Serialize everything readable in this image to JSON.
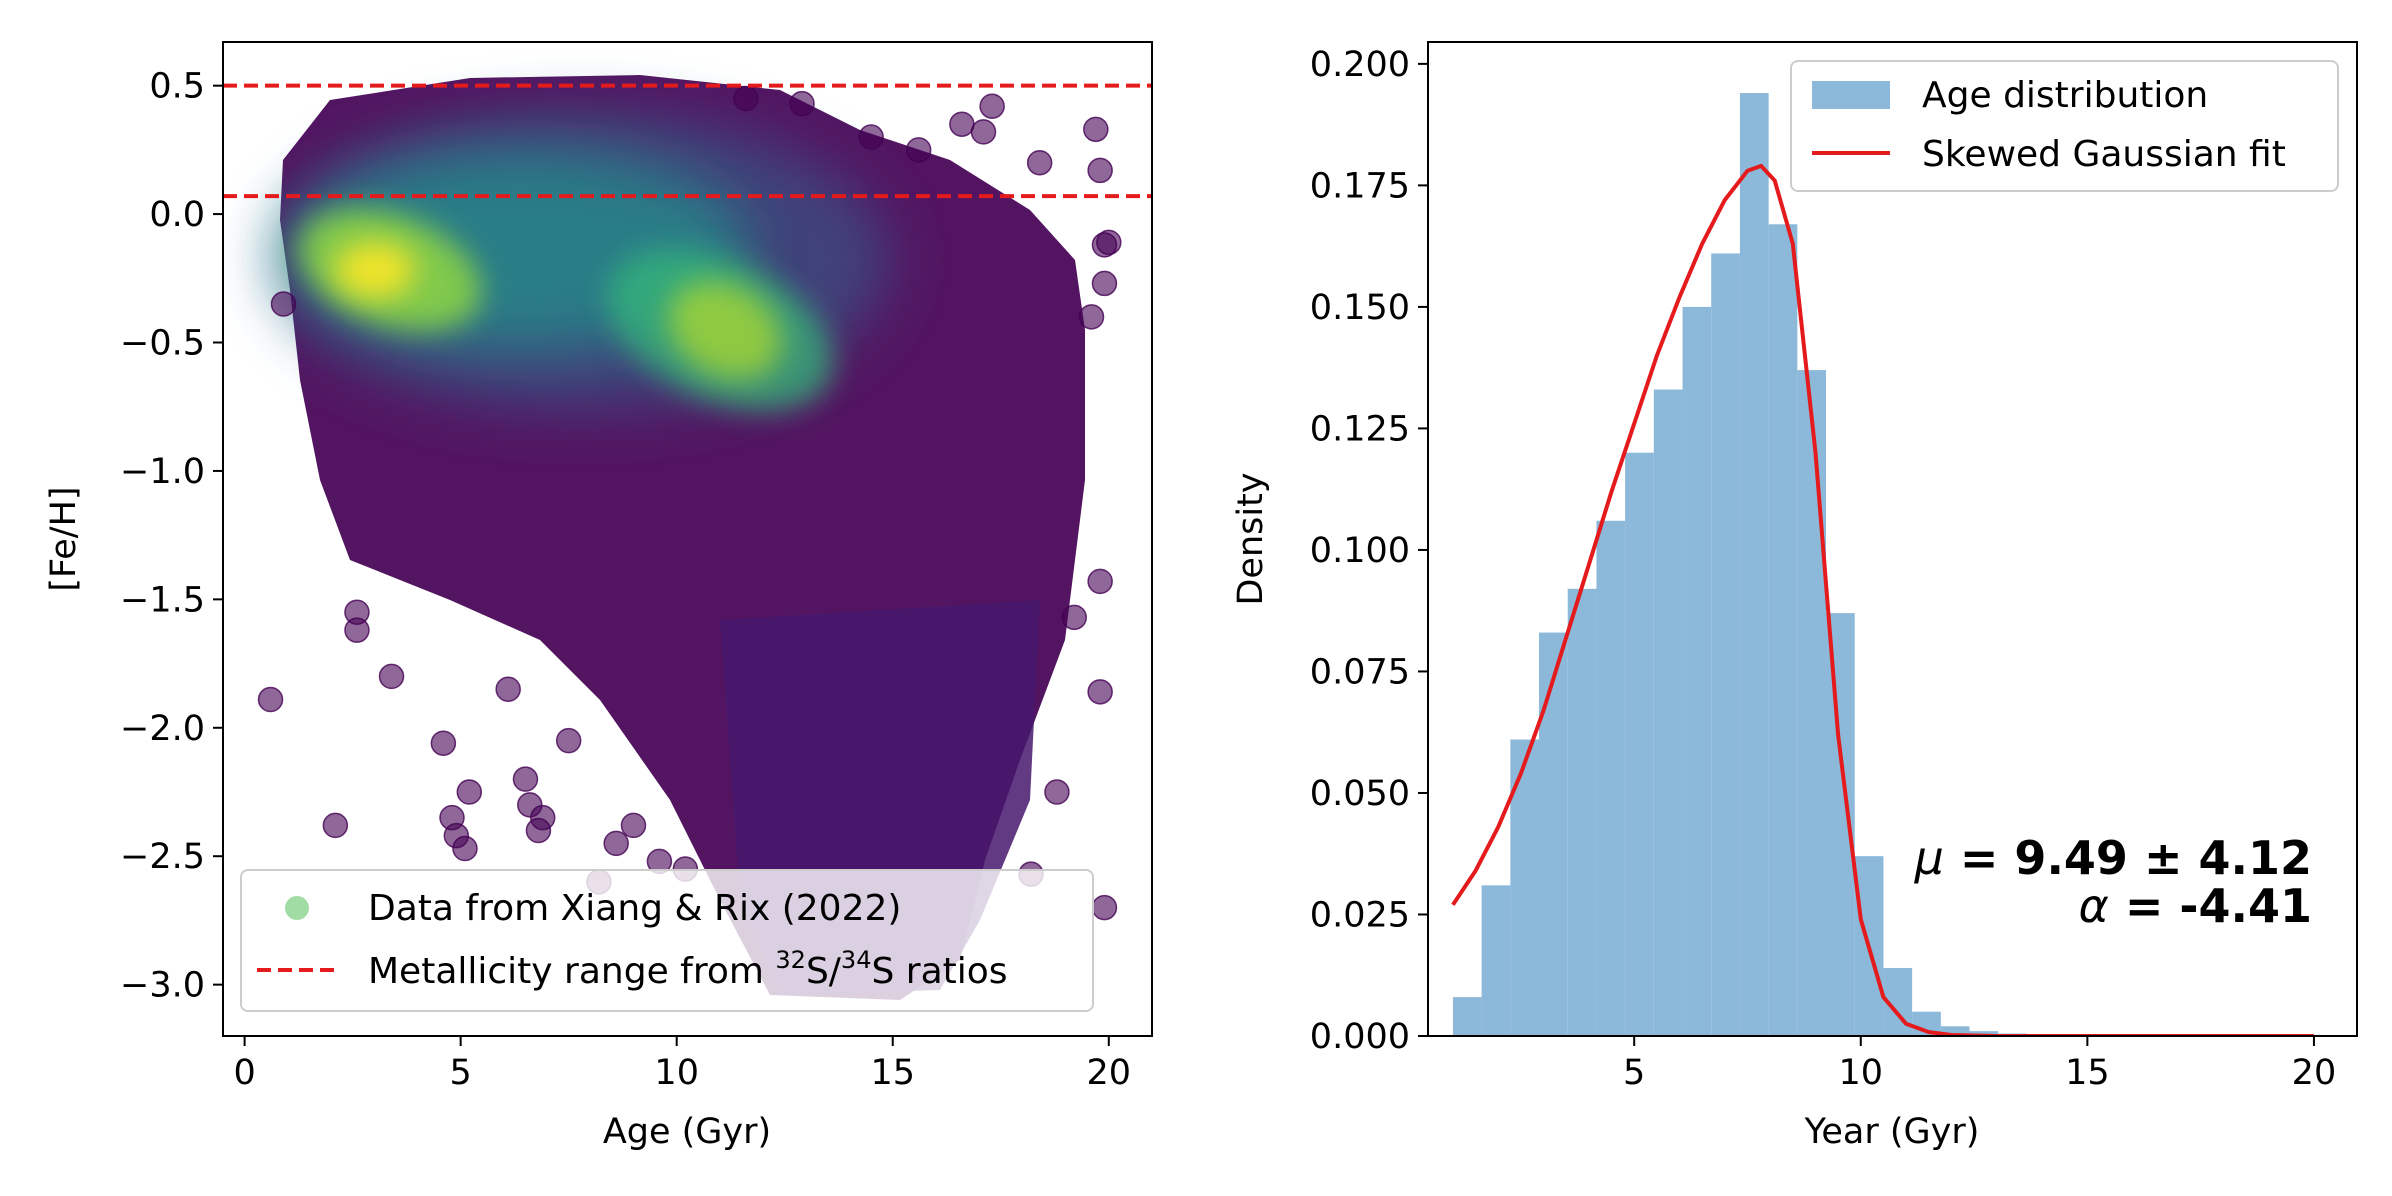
{
  "chart_data": [
    {
      "type": "scatter",
      "xlabel": "Age (Gyr)",
      "ylabel": "[Fe/H]",
      "xlim": [
        -0.5,
        21.0
      ],
      "ylim": [
        -3.2,
        0.67
      ],
      "xticks": [
        0,
        5,
        10,
        15,
        20
      ],
      "xtick_labels": [
        "0",
        "5",
        "10",
        "15",
        "20"
      ],
      "yticks": [
        0.5,
        0.0,
        -0.5,
        -1.0,
        -1.5,
        -2.0,
        -2.5,
        -3.0
      ],
      "ytick_labels": [
        "0.5",
        "0.0",
        "−0.5",
        "−1.0",
        "−1.5",
        "−2.0",
        "−2.5",
        "−3.0"
      ],
      "colormap": "viridis",
      "density_peaks": [
        {
          "x": 3.5,
          "y": -0.25
        },
        {
          "x": 11.2,
          "y": -0.45
        }
      ],
      "sample_points": [
        [
          0.6,
          -1.89
        ],
        [
          0.9,
          -0.35
        ],
        [
          2.1,
          -2.38
        ],
        [
          2.6,
          -1.55
        ],
        [
          2.6,
          -1.62
        ],
        [
          3.4,
          -1.8
        ],
        [
          4.6,
          -2.06
        ],
        [
          4.8,
          -2.35
        ],
        [
          4.9,
          -2.42
        ],
        [
          5.1,
          -2.47
        ],
        [
          5.2,
          -2.25
        ],
        [
          6.1,
          -1.85
        ],
        [
          6.5,
          -2.2
        ],
        [
          6.6,
          -2.3
        ],
        [
          6.8,
          -2.4
        ],
        [
          6.9,
          -2.35
        ],
        [
          7.5,
          -2.05
        ],
        [
          8.2,
          -2.6
        ],
        [
          8.6,
          -2.45
        ],
        [
          9.0,
          -2.38
        ],
        [
          9.6,
          -2.52
        ],
        [
          10.2,
          -2.55
        ],
        [
          17.3,
          0.42
        ],
        [
          17.1,
          0.32
        ],
        [
          19.7,
          0.33
        ],
        [
          19.8,
          0.17
        ],
        [
          19.9,
          -0.12
        ],
        [
          19.9,
          -0.27
        ],
        [
          20.0,
          -0.11
        ],
        [
          19.6,
          -0.4
        ],
        [
          19.8,
          -1.43
        ],
        [
          19.8,
          -1.86
        ],
        [
          19.2,
          -1.57
        ],
        [
          18.8,
          -2.25
        ],
        [
          18.2,
          -2.57
        ],
        [
          19.9,
          -2.7
        ],
        [
          16.6,
          0.35
        ],
        [
          18.4,
          0.2
        ],
        [
          15.6,
          0.25
        ],
        [
          14.5,
          0.3
        ],
        [
          12.9,
          0.43
        ],
        [
          11.6,
          0.45
        ]
      ],
      "hlines": [
        {
          "y": 0.5,
          "color": "#e41a1c",
          "style": "dashed"
        },
        {
          "y": 0.07,
          "color": "#e41a1c",
          "style": "dashed"
        }
      ],
      "legend": {
        "placement": "lower-left",
        "entries": [
          {
            "label": "Data from Xiang & Rix (2022)",
            "color": "#8fd694",
            "marker": "circle"
          },
          {
            "label_prefix": "Metallicity range from ",
            "sup1": "32",
            "mid": "S/",
            "sup2": "34",
            "label_suffix": "S ratios",
            "color": "#e41a1c",
            "marker": "dashed-line"
          }
        ]
      },
      "point_color": "#440154",
      "line_color": "#e41a1c"
    },
    {
      "type": "bar",
      "subtype": "histogram",
      "xlabel": "Year (Gyr)",
      "ylabel": "Density",
      "xlim": [
        0.45,
        20.95
      ],
      "ylim": [
        0.0,
        0.2045
      ],
      "xticks": [
        5,
        10,
        15,
        20
      ],
      "xtick_labels": [
        "5",
        "10",
        "15",
        "20"
      ],
      "yticks": [
        0.0,
        0.025,
        0.05,
        0.075,
        0.1,
        0.125,
        0.15,
        0.175,
        0.2
      ],
      "ytick_labels": [
        "0.000",
        "0.025",
        "0.050",
        "0.075",
        "0.100",
        "0.125",
        "0.150",
        "0.175",
        "0.200"
      ],
      "bin_edges": [
        1.0,
        1.633,
        2.267,
        2.9,
        3.533,
        4.167,
        4.8,
        5.433,
        6.067,
        6.7,
        7.333,
        7.967,
        8.6,
        9.233,
        9.867,
        10.5,
        11.133,
        11.767,
        12.4,
        13.033,
        13.667,
        14.3,
        14.933,
        15.567,
        16.2,
        16.833,
        17.467,
        18.1,
        18.733,
        19.367,
        20.0
      ],
      "values": [
        0.008,
        0.031,
        0.061,
        0.083,
        0.092,
        0.106,
        0.12,
        0.133,
        0.15,
        0.161,
        0.194,
        0.167,
        0.137,
        0.087,
        0.037,
        0.014,
        0.005,
        0.002,
        0.001,
        0.0005,
        0.0003,
        0.0002,
        0.0001,
        0.0001,
        0.0,
        0.0,
        0.0,
        0.0,
        0.0,
        0.0
      ],
      "bar_color": "#8cb8d9",
      "fit": {
        "x": [
          1.0,
          1.5,
          2.0,
          2.5,
          3.0,
          3.5,
          4.0,
          4.5,
          5.0,
          5.5,
          6.0,
          6.5,
          7.0,
          7.5,
          7.8,
          8.1,
          8.5,
          9.0,
          9.5,
          10.0,
          10.5,
          11.0,
          11.5,
          12.0,
          13.0,
          14.0,
          16.0,
          18.0,
          20.0
        ],
        "y": [
          0.027,
          0.034,
          0.043,
          0.054,
          0.067,
          0.082,
          0.097,
          0.112,
          0.126,
          0.14,
          0.152,
          0.163,
          0.172,
          0.178,
          0.179,
          0.176,
          0.163,
          0.12,
          0.062,
          0.024,
          0.008,
          0.0025,
          0.0008,
          0.0002,
          0.0,
          0.0,
          0.0,
          0.0,
          0.0
        ],
        "color": "#e41a1c"
      },
      "legend": {
        "placement": "top-right",
        "entries": [
          {
            "label": "Age distribution",
            "color": "#8cb8d9",
            "marker": "patch"
          },
          {
            "label": "Skewed Gaussian fit",
            "color": "#e41a1c",
            "marker": "line"
          }
        ]
      },
      "annotations": {
        "mu_symbol": "μ",
        "mu_text": " = 9.49 ± 4.12",
        "alpha_symbol": "α",
        "alpha_text": " = -4.41"
      }
    }
  ]
}
